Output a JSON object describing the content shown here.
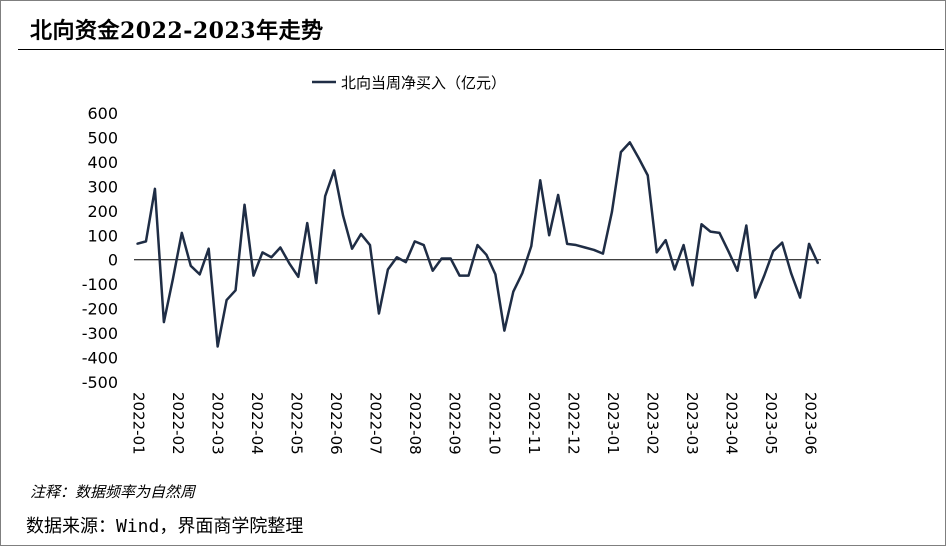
{
  "title": "北向资金2022-2023年走势",
  "note": "注释：数据频率为自然周",
  "source": "数据来源：Wind，界面商学院整理",
  "colors": {
    "line": "#1f2d45",
    "axis": "#000000",
    "frame": "#7f7f7f"
  },
  "chart_data": {
    "type": "line",
    "legend": "北向当周净买入（亿元）",
    "legend_placement": "top-center",
    "grid": false,
    "ylim": [
      -500,
      600
    ],
    "yticks": [
      "600",
      "500",
      "400",
      "300",
      "200",
      "100",
      "0",
      "-100",
      "-200",
      "-300",
      "-400",
      "-500"
    ],
    "xticks": [
      "2022-01",
      "2022-02",
      "2022-03",
      "2022-04",
      "2022-05",
      "2022-06",
      "2022-07",
      "2022-08",
      "2022-09",
      "2022-10",
      "2022-11",
      "2022-12",
      "2023-01",
      "2023-02",
      "2023-03",
      "2023-04",
      "2023-05",
      "2023-06"
    ],
    "series": [
      {
        "name": "北向当周净买入（亿元）",
        "values": [
          65,
          75,
          290,
          -255,
          -80,
          110,
          -25,
          -60,
          45,
          -355,
          -165,
          -125,
          225,
          -65,
          30,
          10,
          50,
          -15,
          -70,
          150,
          -95,
          260,
          365,
          180,
          45,
          105,
          60,
          -220,
          -40,
          10,
          -10,
          75,
          60,
          -45,
          5,
          5,
          -65,
          -65,
          60,
          20,
          -60,
          -290,
          -130,
          -55,
          55,
          325,
          100,
          265,
          65,
          60,
          50,
          40,
          25,
          195,
          440,
          480,
          415,
          345,
          30,
          80,
          -40,
          60,
          -105,
          145,
          115,
          110,
          35,
          -45,
          140,
          -155,
          -65,
          35,
          70,
          -55,
          -155,
          65,
          -15
        ]
      }
    ]
  }
}
